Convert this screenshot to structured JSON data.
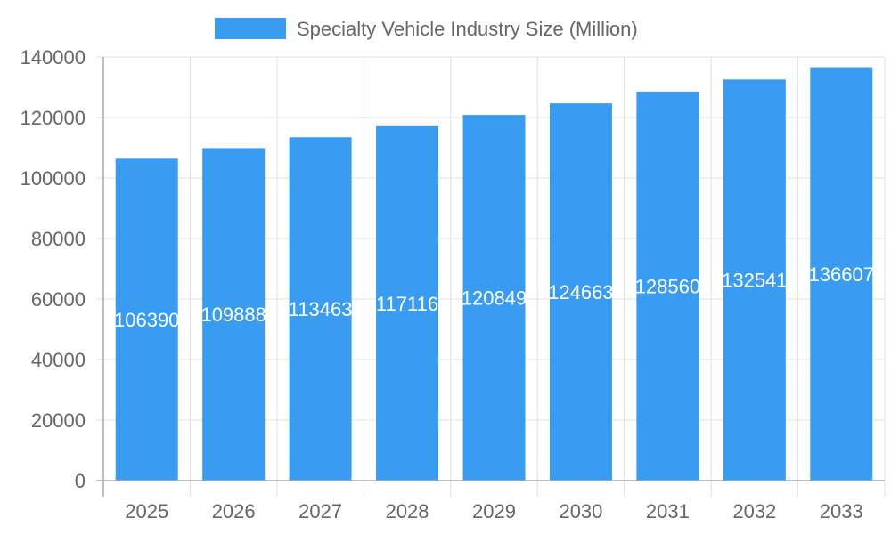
{
  "chart_data": {
    "type": "bar",
    "title": "",
    "xlabel": "",
    "ylabel": "",
    "categories": [
      "2025",
      "2026",
      "2027",
      "2028",
      "2029",
      "2030",
      "2031",
      "2032",
      "2033"
    ],
    "series": [
      {
        "name": "Specialty Vehicle Industry Size (Million)",
        "values": [
          106390,
          109888,
          113463,
          117116,
          120849,
          124663,
          128560,
          132541,
          136607
        ],
        "color": "#3a9cf0"
      }
    ],
    "ylim": [
      0,
      140000
    ],
    "yticks": [
      0,
      20000,
      40000,
      60000,
      80000,
      100000,
      120000,
      140000
    ],
    "grid": true,
    "legend_position": "top",
    "data_labels": true
  }
}
